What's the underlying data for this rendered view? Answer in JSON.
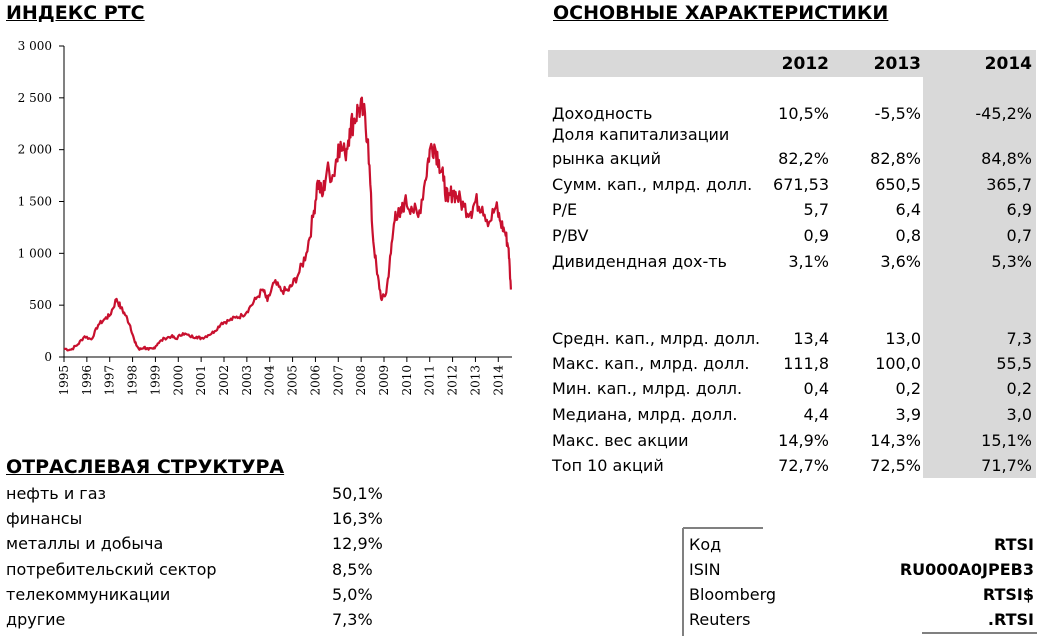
{
  "chart_section": {
    "title": "ИНДЕКС РТС"
  },
  "chart_data": {
    "type": "line",
    "title": "ИНДЕКС РТС",
    "xlabel": "",
    "ylabel": "",
    "ylim": [
      0,
      3000
    ],
    "y_ticks": [
      0,
      500,
      1000,
      1500,
      2000,
      2500,
      3000
    ],
    "y_tick_labels": [
      "0",
      "500",
      "1 000",
      "1 500",
      "2 000",
      "2 500",
      "3 000"
    ],
    "x_ticks": [
      1995,
      1996,
      1997,
      1998,
      1999,
      2000,
      2001,
      2002,
      2003,
      2004,
      2005,
      2006,
      2007,
      2008,
      2009,
      2010,
      2011,
      2012,
      2013,
      2014
    ],
    "xlim": [
      1995,
      2014.6
    ],
    "color": "#c8102e",
    "series": [
      {
        "x": [
          1995.0,
          1995.3,
          1995.6,
          1995.9,
          1996.2,
          1996.5,
          1996.8,
          1997.0,
          1997.3,
          1997.5,
          1997.7,
          1997.9,
          1998.1,
          1998.3,
          1998.5,
          1998.7,
          1998.9,
          1999.1,
          1999.4,
          1999.7,
          1999.9,
          2000.2,
          2000.5,
          2000.8,
          2001.0,
          2001.3,
          2001.6,
          2001.9,
          2002.2,
          2002.5,
          2002.8,
          2003.1,
          2003.4,
          2003.7,
          2003.9,
          2004.2,
          2004.5,
          2004.8,
          2005.0,
          2005.3,
          2005.6,
          2005.9,
          2006.1,
          2006.3,
          2006.5,
          2006.8,
          2007.0,
          2007.3,
          2007.5,
          2007.7,
          2007.9,
          2008.1,
          2008.3,
          2008.5,
          2008.7,
          2008.9,
          2009.1,
          2009.3,
          2009.5,
          2009.7,
          2009.9,
          2010.2,
          2010.5,
          2010.8,
          2011.0,
          2011.2,
          2011.4,
          2011.6,
          2011.8,
          2012.0,
          2012.2,
          2012.5,
          2012.8,
          2013.0,
          2013.3,
          2013.6,
          2013.9,
          2014.1,
          2014.3,
          2014.45,
          2014.55
        ],
        "y": [
          80,
          70,
          120,
          200,
          170,
          310,
          370,
          400,
          560,
          470,
          400,
          300,
          140,
          70,
          95,
          70,
          80,
          130,
          180,
          200,
          175,
          230,
          200,
          195,
          180,
          210,
          250,
          330,
          350,
          380,
          400,
          470,
          560,
          650,
          540,
          720,
          640,
          640,
          700,
          820,
          1000,
          1350,
          1700,
          1550,
          1800,
          1750,
          2050,
          1950,
          2200,
          2300,
          2400,
          2360,
          2100,
          1200,
          800,
          550,
          620,
          1000,
          1400,
          1350,
          1500,
          1450,
          1350,
          1700,
          2000,
          2050,
          1900,
          1700,
          1500,
          1600,
          1550,
          1450,
          1400,
          1500,
          1450,
          1300,
          1450,
          1300,
          1200,
          1050,
          650
        ]
      }
    ]
  },
  "sector_section": {
    "title": "ОТРАСЛЕВАЯ СТРУКТУРА",
    "items": [
      {
        "name": "нефть и газ",
        "value": "50,1%"
      },
      {
        "name": "финансы",
        "value": "16,3%"
      },
      {
        "name": "металлы и добыча",
        "value": "12,9%"
      },
      {
        "name": "потребительский сектор",
        "value": "8,5%"
      },
      {
        "name": "телекоммуникации",
        "value": "5,0%"
      },
      {
        "name": "другие",
        "value": "7,3%"
      }
    ]
  },
  "characteristics": {
    "title": "ОСНОВНЫЕ ХАРАКТЕРИСТИКИ",
    "years": [
      "2012",
      "2013",
      "2014"
    ],
    "rows": [
      {
        "label": "Доходность",
        "values": [
          "10,5%",
          "-5,5%",
          "-45,2%"
        ]
      },
      {
        "label": "Доля капитализации",
        "label2": "рынка акций",
        "values": [
          "82,2%",
          "82,8%",
          "84,8%"
        ]
      },
      {
        "label": "Сумм. кап., млрд. долл.",
        "values": [
          "671,53",
          "650,5",
          "365,7"
        ]
      },
      {
        "label": "P/E",
        "values": [
          "5,7",
          "6,4",
          "6,9"
        ]
      },
      {
        "label": "P/BV",
        "values": [
          "0,9",
          "0,8",
          "0,7"
        ]
      },
      {
        "label": "Дивидендная дох-ть",
        "values": [
          "3,1%",
          "3,6%",
          "5,3%"
        ]
      },
      {
        "label": "Средн. кап., млрд. долл.",
        "values": [
          "13,4",
          "13,0",
          "7,3"
        ]
      },
      {
        "label": "Макс. кап., млрд. долл.",
        "values": [
          "111,8",
          "100,0",
          "55,5"
        ]
      },
      {
        "label": "Мин. кап., млрд. долл.",
        "values": [
          "0,4",
          "0,2",
          "0,2"
        ]
      },
      {
        "label": "Медиана, млрд. долл.",
        "values": [
          "4,4",
          "3,9",
          "3,0"
        ]
      },
      {
        "label": "Макс. вес акции",
        "values": [
          "14,9%",
          "14,3%",
          "15,1%"
        ]
      },
      {
        "label": "Топ 10 акций",
        "values": [
          "72,7%",
          "72,5%",
          "71,7%"
        ]
      }
    ]
  },
  "codes": [
    {
      "key": "Код",
      "value": "RTSI"
    },
    {
      "key": "ISIN",
      "value": "RU000A0JPEB3"
    },
    {
      "key": "Bloomberg",
      "value": "RTSI$"
    },
    {
      "key": "Reuters",
      "value": ".RTSI"
    }
  ]
}
